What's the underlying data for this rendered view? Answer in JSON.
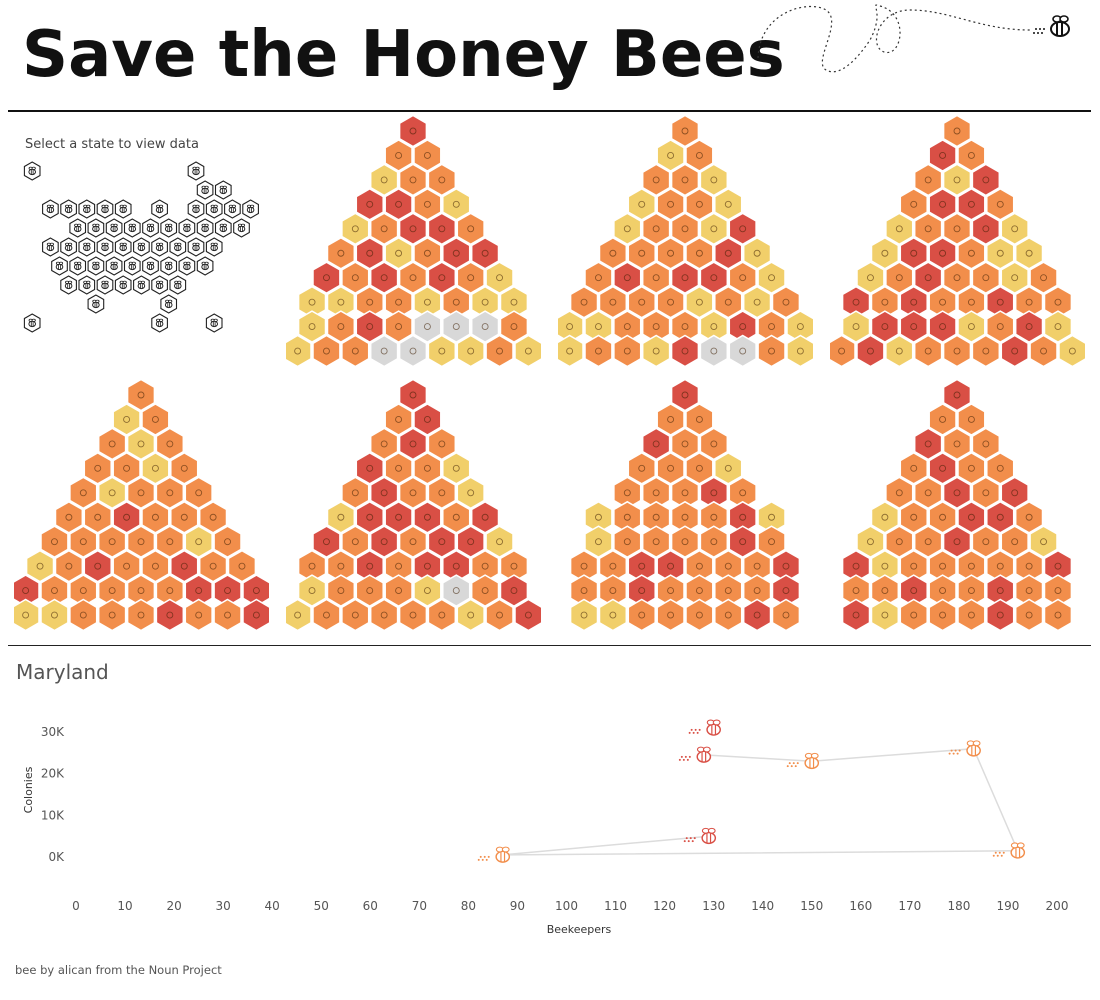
{
  "title": "Save the Honey Bees",
  "instruction": "Select a state to view data",
  "selected_state": "Maryland",
  "credit": "bee by alican from the Noun Project",
  "colors": {
    "red": "#d94f45",
    "orange": "#f28e4b",
    "yellow": "#f1cf6a",
    "gray": "#d8d8d8",
    "line": "#dcdcdc"
  },
  "icons": [
    "bee-icon",
    "hexagon-icon"
  ],
  "state_map": {
    "rows": [
      [
        1,
        10
      ],
      [
        10,
        11
      ],
      [
        2,
        3,
        4,
        5,
        6,
        8,
        10,
        11,
        12,
        13
      ],
      [
        3,
        4,
        5,
        6,
        7,
        8,
        9,
        10,
        11,
        12
      ],
      [
        2,
        3,
        4,
        5,
        6,
        7,
        8,
        9,
        10,
        11
      ],
      [
        2,
        3,
        4,
        5,
        6,
        7,
        8,
        9,
        10
      ],
      [
        3,
        4,
        5,
        6,
        7,
        8,
        9
      ],
      [
        4,
        8
      ],
      [
        1,
        8,
        11
      ]
    ]
  },
  "hex_grids": [
    {
      "rows": [
        "R",
        "OO",
        "YOO",
        "RROY",
        "YORRO",
        "ORYORR",
        "ROROROY",
        "YYOOYOYY",
        "YOROGGGO",
        "YOOGGYYOY"
      ],
      "highlight": [
        2,
        3
      ]
    },
    {
      "rows": [
        "O",
        "YO",
        "OOY",
        "YOOY",
        "YOOYR",
        "OOOORY",
        "ORORROY",
        "OOOOYOYO",
        "YYOOOYROY",
        "YOOYRGGOY"
      ],
      "highlight": [
        2,
        3
      ]
    },
    {
      "rows": [
        "O",
        "RO",
        "OYR",
        "ORRO",
        "YOORY",
        "YRROYY",
        "YOROOYO",
        "ROROOROO",
        "YRRRYORY",
        "ORYOOOROY"
      ],
      "highlight": [
        2,
        3
      ]
    },
    {
      "rows": [
        "O",
        "YO",
        "OYO",
        "OOYO",
        "OYOOO",
        "OOROOO",
        "OOOOOYO",
        "YOROOROO",
        "ROOOOORRR",
        "YYOOOROOR"
      ],
      "highlight": [
        2,
        3
      ]
    },
    {
      "rows": [
        "R",
        "OR",
        "ORO",
        "ROOY",
        "OROOY",
        "YRRROR",
        "RORORRY",
        "OORORROO",
        "YOOOYGOR",
        "YOOOOOYOR"
      ],
      "highlight": [
        2,
        3
      ]
    },
    {
      "rows": [
        "R",
        "OO",
        "ROO",
        "OOOY",
        "OOORO",
        "YOOOORY",
        "YOOOORO",
        "OORROOOR",
        "OOROOOOR",
        "YYOOOORO"
      ],
      "highlight": [
        2,
        3
      ]
    },
    {
      "rows": [
        "R",
        "OO",
        "ROO",
        "OROO",
        "OOROR",
        "YOORRO",
        "YOOROOY",
        "RYOOOOOR",
        "OOROOROO",
        "RYOOOROO"
      ],
      "highlight": [
        2,
        3
      ]
    },
    {
      "rows": [
        "R",
        "OO",
        "ROO",
        "OROR",
        "OOORO",
        "OOOOOY",
        "RROROOR",
        "OOOROOOR",
        "OOOROROO",
        "ROOOOOORR"
      ],
      "highlight": [
        2,
        3
      ]
    }
  ],
  "chart_data": {
    "type": "line",
    "title": "Maryland",
    "xlabel": "Beekeepers",
    "ylabel": "Colonies",
    "x_ticks": [
      "0",
      "10",
      "20",
      "30",
      "40",
      "50",
      "60",
      "70",
      "80",
      "90",
      "100",
      "110",
      "120",
      "130",
      "140",
      "150",
      "160",
      "170",
      "180",
      "190",
      "200"
    ],
    "y_ticks": [
      "0K",
      "10K",
      "20K",
      "30K"
    ],
    "xlim": [
      0,
      200
    ],
    "ylim": [
      0,
      30000
    ],
    "grid": false,
    "series": [
      {
        "points": [
          {
            "x": 130,
            "y": 31000,
            "color": "red"
          },
          {
            "x": 128,
            "y": 24500,
            "color": "red"
          },
          {
            "x": 150,
            "y": 23000,
            "color": "orange"
          },
          {
            "x": 183,
            "y": 26000,
            "color": "orange"
          },
          {
            "x": 192,
            "y": 1500,
            "color": "orange"
          },
          {
            "x": 87,
            "y": 500,
            "color": "orange"
          },
          {
            "x": 129,
            "y": 5000,
            "color": "red"
          }
        ],
        "path": [
          1,
          2,
          3,
          4,
          5,
          6
        ]
      }
    ]
  }
}
